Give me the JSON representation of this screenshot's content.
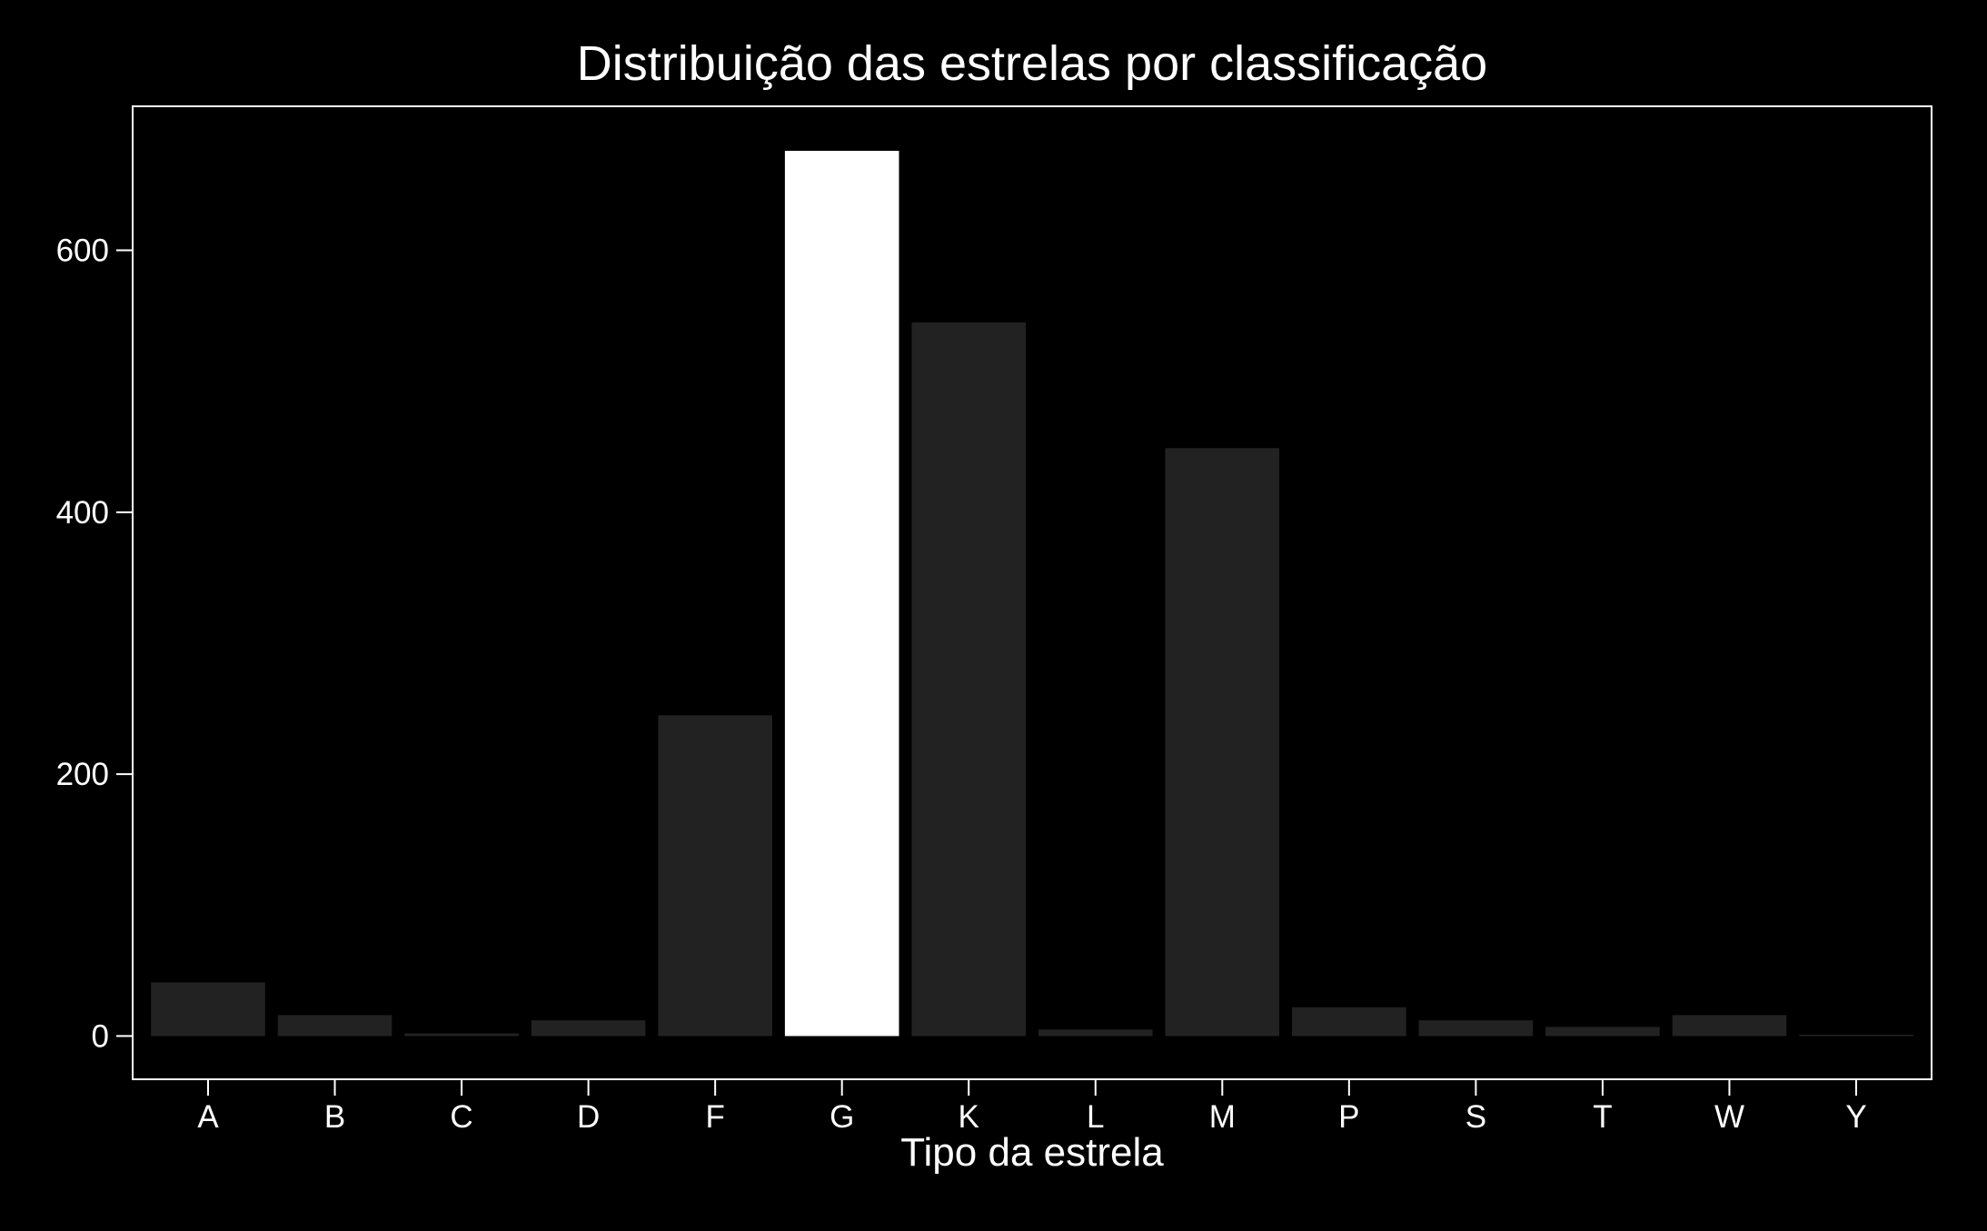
{
  "chart_data": {
    "type": "bar",
    "title": "Distribuição das estrelas por classificação",
    "xlabel": "Tipo da estrela",
    "ylabel": "",
    "categories": [
      "A",
      "B",
      "C",
      "D",
      "F",
      "G",
      "K",
      "L",
      "M",
      "P",
      "S",
      "T",
      "W",
      "Y"
    ],
    "values": [
      41,
      16,
      2,
      12,
      245,
      676,
      545,
      5,
      449,
      22,
      12,
      7,
      16,
      1
    ],
    "highlight_category": "G",
    "ylim": [
      -33,
      710
    ],
    "yticks": [
      0,
      200,
      400,
      600
    ],
    "grid": false,
    "legend": "none",
    "colors": {
      "background": "#000000",
      "bar": "#222222",
      "highlight_bar": "#ffffff",
      "axes": "#ffffff",
      "text": "#ffffff"
    }
  }
}
